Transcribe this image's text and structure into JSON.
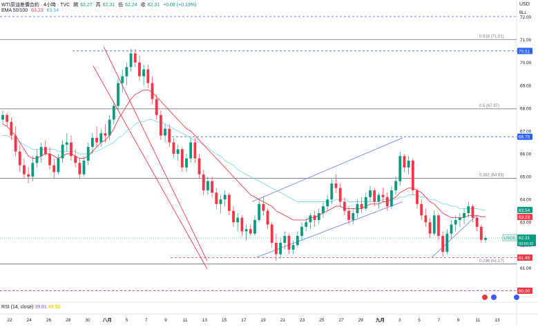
{
  "header": {
    "symbol_title": "WTI原油差價合約 · 4小時 · TVC",
    "open_label": "開",
    "open_value": "62.27",
    "high_label": "高",
    "high_value": "62.31",
    "low_label": "低",
    "low_value": "62.24",
    "close_label": "收",
    "close_value": "62.31",
    "change": "+0.08 (+0.13%)",
    "ema_label": "EMA 50/100",
    "ema_fast": "63.23",
    "ema_slow": "63.54",
    "currency": "USD",
    "currency_sub": "BLL"
  },
  "rsi": {
    "label": "RSI (14, close)",
    "value1": "39.81",
    "value2": "49.50"
  },
  "colors": {
    "up": "#089981",
    "down": "#f23645",
    "ema_fast": "#f23645",
    "ema_slow": "#7fd7ef",
    "channel_down": "#f23645",
    "channel_up": "#6c8ce8",
    "level_blue": "#2962ff",
    "level_red": "#f23645"
  },
  "fib_levels": [
    {
      "label": "0.618 (71.01)",
      "value": 71.01
    },
    {
      "label": "0.5 (67.97)",
      "value": 67.97
    },
    {
      "label": "0.382 (64.93)",
      "value": 64.93
    },
    {
      "label": "0.236 (61.17)",
      "value": 61.17
    }
  ],
  "price_badges": [
    {
      "label": "70.51",
      "value": 70.51,
      "color": "#2962ff"
    },
    {
      "label": "66.75",
      "value": 66.75,
      "color": "#2962ff"
    },
    {
      "label": "63.54",
      "value": 63.54,
      "color": "#089981"
    },
    {
      "label": "63.23",
      "value": 63.23,
      "color": "#f23645"
    },
    {
      "label": "61.45",
      "value": 61.45,
      "color": "#f23645"
    },
    {
      "label": "60.00",
      "value": 60.0,
      "color": "#f23645"
    }
  ],
  "usoil_badge": {
    "symbol": "USOIL",
    "price": "62.31",
    "countdown": "03:55:32",
    "value": 62.31
  },
  "chart_data": {
    "type": "candlestick",
    "y_axis_ticks": [
      "72.00",
      "71.00",
      "70.00",
      "69.00",
      "68.00",
      "67.00",
      "66.00",
      "65.00",
      "64.00",
      "63.00",
      "62.00",
      "61.00"
    ],
    "ylim": [
      59.5,
      72.5
    ],
    "x_axis_ticks": [
      "22",
      "24",
      "26",
      "28",
      "30",
      "八月",
      "5",
      "7",
      "9",
      "11",
      "13",
      "15",
      "17",
      "19",
      "21",
      "23",
      "25",
      "27",
      "29",
      "九月",
      "3",
      "5",
      "7",
      "9",
      "11",
      "13"
    ],
    "ohlc": [
      [
        67.5,
        67.9,
        67.3,
        67.7
      ],
      [
        67.7,
        67.8,
        67.2,
        67.4
      ],
      [
        67.4,
        67.6,
        66.6,
        66.8
      ],
      [
        66.8,
        67.2,
        65.9,
        66.1
      ],
      [
        66.1,
        66.4,
        65.2,
        65.5
      ],
      [
        65.5,
        65.8,
        64.9,
        65.1
      ],
      [
        65.1,
        65.4,
        64.7,
        65.0
      ],
      [
        65.0,
        65.9,
        64.8,
        65.6
      ],
      [
        65.6,
        66.2,
        65.4,
        65.9
      ],
      [
        65.9,
        66.5,
        65.6,
        66.3
      ],
      [
        66.3,
        66.6,
        65.9,
        66.0
      ],
      [
        66.0,
        66.3,
        65.3,
        65.5
      ],
      [
        65.5,
        65.8,
        64.9,
        65.2
      ],
      [
        65.2,
        66.0,
        65.1,
        65.8
      ],
      [
        65.8,
        66.6,
        65.6,
        66.4
      ],
      [
        66.4,
        66.9,
        66.1,
        66.5
      ],
      [
        66.5,
        66.8,
        65.7,
        65.9
      ],
      [
        65.9,
        66.2,
        65.4,
        65.6
      ],
      [
        65.6,
        65.8,
        64.9,
        65.1
      ],
      [
        65.1,
        65.9,
        65.0,
        65.7
      ],
      [
        65.7,
        66.5,
        65.5,
        66.3
      ],
      [
        66.3,
        66.9,
        66.0,
        66.7
      ],
      [
        66.7,
        67.2,
        66.3,
        66.5
      ],
      [
        66.5,
        67.1,
        66.3,
        66.9
      ],
      [
        66.9,
        67.3,
        66.5,
        66.8
      ],
      [
        66.8,
        67.7,
        66.6,
        67.5
      ],
      [
        67.5,
        68.3,
        67.3,
        68.1
      ],
      [
        68.1,
        69.3,
        67.9,
        69.1
      ],
      [
        69.1,
        69.7,
        68.7,
        69.4
      ],
      [
        69.4,
        70.0,
        69.0,
        69.8
      ],
      [
        69.8,
        70.6,
        69.6,
        70.4
      ],
      [
        70.4,
        70.6,
        69.8,
        70.0
      ],
      [
        70.0,
        70.3,
        69.2,
        69.4
      ],
      [
        69.4,
        69.9,
        69.0,
        69.7
      ],
      [
        69.7,
        69.9,
        68.9,
        69.1
      ],
      [
        69.1,
        69.4,
        68.2,
        68.4
      ],
      [
        68.4,
        68.6,
        67.5,
        67.7
      ],
      [
        67.7,
        67.9,
        66.6,
        66.8
      ],
      [
        66.8,
        67.3,
        66.5,
        67.1
      ],
      [
        67.1,
        67.3,
        66.3,
        66.5
      ],
      [
        66.5,
        66.7,
        65.8,
        66.0
      ],
      [
        66.0,
        66.4,
        65.7,
        66.2
      ],
      [
        66.2,
        66.3,
        65.2,
        65.4
      ],
      [
        65.4,
        66.0,
        65.2,
        65.8
      ],
      [
        65.8,
        66.7,
        65.6,
        66.5
      ],
      [
        66.5,
        66.7,
        65.6,
        65.8
      ],
      [
        65.8,
        66.0,
        64.9,
        65.1
      ],
      [
        65.1,
        65.3,
        64.2,
        64.4
      ],
      [
        64.4,
        65.0,
        64.2,
        64.8
      ],
      [
        64.8,
        65.0,
        64.1,
        64.3
      ],
      [
        64.3,
        64.5,
        63.6,
        63.8
      ],
      [
        63.8,
        64.2,
        63.4,
        64.0
      ],
      [
        64.0,
        64.4,
        63.7,
        64.2
      ],
      [
        64.2,
        64.3,
        63.3,
        63.5
      ],
      [
        63.5,
        63.7,
        62.8,
        63.0
      ],
      [
        63.0,
        63.4,
        62.6,
        63.2
      ],
      [
        63.2,
        63.3,
        62.4,
        62.6
      ],
      [
        62.6,
        62.9,
        62.2,
        62.7
      ],
      [
        62.7,
        62.9,
        62.4,
        62.5
      ],
      [
        62.5,
        63.3,
        62.4,
        63.1
      ],
      [
        63.1,
        64.0,
        63.0,
        63.8
      ],
      [
        63.8,
        64.1,
        63.3,
        63.5
      ],
      [
        63.5,
        63.6,
        62.7,
        62.9
      ],
      [
        62.9,
        63.0,
        61.9,
        62.1
      ],
      [
        62.1,
        62.5,
        61.3,
        61.6
      ],
      [
        61.6,
        62.3,
        61.4,
        62.1
      ],
      [
        62.1,
        62.6,
        61.8,
        62.4
      ],
      [
        62.4,
        62.5,
        61.6,
        61.8
      ],
      [
        61.8,
        62.2,
        61.6,
        62.0
      ],
      [
        62.0,
        62.6,
        61.9,
        62.4
      ],
      [
        62.4,
        63.0,
        62.2,
        62.8
      ],
      [
        62.8,
        63.2,
        62.6,
        63.0
      ],
      [
        63.0,
        63.4,
        62.7,
        63.3
      ],
      [
        63.3,
        63.5,
        62.8,
        63.1
      ],
      [
        63.1,
        63.6,
        62.9,
        63.4
      ],
      [
        63.4,
        63.9,
        63.2,
        63.7
      ],
      [
        63.7,
        64.2,
        63.5,
        64.0
      ],
      [
        64.0,
        64.9,
        63.8,
        64.7
      ],
      [
        64.7,
        65.1,
        64.3,
        64.5
      ],
      [
        64.5,
        64.7,
        63.7,
        63.9
      ],
      [
        63.9,
        64.1,
        63.3,
        63.5
      ],
      [
        63.5,
        63.7,
        62.9,
        63.1
      ],
      [
        63.1,
        63.6,
        62.9,
        63.4
      ],
      [
        63.4,
        64.0,
        63.2,
        63.8
      ],
      [
        63.8,
        64.1,
        63.4,
        63.6
      ],
      [
        63.6,
        64.3,
        63.5,
        64.1
      ],
      [
        64.1,
        64.6,
        63.9,
        64.4
      ],
      [
        64.4,
        64.5,
        63.7,
        63.9
      ],
      [
        63.9,
        64.3,
        63.6,
        64.2
      ],
      [
        64.2,
        64.5,
        63.9,
        64.1
      ],
      [
        64.1,
        64.3,
        63.5,
        63.7
      ],
      [
        63.7,
        64.6,
        63.6,
        64.4
      ],
      [
        64.4,
        65.0,
        64.2,
        64.8
      ],
      [
        64.8,
        66.1,
        64.6,
        65.9
      ],
      [
        65.9,
        66.0,
        65.2,
        65.4
      ],
      [
        65.4,
        65.9,
        65.1,
        65.7
      ],
      [
        65.7,
        65.8,
        64.2,
        64.4
      ],
      [
        64.4,
        64.5,
        63.6,
        63.8
      ],
      [
        63.8,
        64.0,
        63.1,
        63.3
      ],
      [
        63.3,
        63.6,
        62.8,
        63.0
      ],
      [
        63.0,
        63.2,
        62.3,
        62.5
      ],
      [
        62.5,
        63.5,
        62.4,
        63.3
      ],
      [
        63.3,
        63.4,
        62.2,
        62.4
      ],
      [
        62.4,
        62.6,
        61.5,
        61.7
      ],
      [
        61.7,
        62.7,
        61.6,
        62.5
      ],
      [
        62.5,
        63.1,
        62.3,
        62.9
      ],
      [
        62.9,
        63.3,
        62.6,
        63.1
      ],
      [
        63.1,
        63.4,
        62.8,
        63.2
      ],
      [
        63.2,
        63.6,
        62.9,
        63.4
      ],
      [
        63.4,
        63.9,
        63.2,
        63.7
      ],
      [
        63.7,
        63.8,
        63.0,
        63.2
      ],
      [
        63.2,
        63.3,
        62.6,
        62.8
      ],
      [
        62.8,
        62.9,
        62.1,
        62.23
      ],
      [
        62.23,
        62.4,
        62.1,
        62.31
      ]
    ],
    "ema_fast_values": [
      67.3,
      67.2,
      67.0,
      66.8,
      66.5,
      66.2,
      65.9,
      65.8,
      65.8,
      65.9,
      66.0,
      66.0,
      65.9,
      65.8,
      65.9,
      66.0,
      66.0,
      65.9,
      65.8,
      65.8,
      65.9,
      66.1,
      66.3,
      66.5,
      66.6,
      66.8,
      67.1,
      67.5,
      67.8,
      68.1,
      68.4,
      68.6,
      68.7,
      68.8,
      68.8,
      68.7,
      68.5,
      68.3,
      68.1,
      67.9,
      67.7,
      67.5,
      67.3,
      67.1,
      67.0,
      66.8,
      66.6,
      66.4,
      66.2,
      66.0,
      65.8,
      65.6,
      65.4,
      65.2,
      65.0,
      64.8,
      64.6,
      64.4,
      64.2,
      64.1,
      64.0,
      63.9,
      63.8,
      63.7,
      63.5,
      63.4,
      63.3,
      63.2,
      63.1,
      63.1,
      63.1,
      63.1,
      63.2,
      63.2,
      63.3,
      63.4,
      63.5,
      63.6,
      63.7,
      63.7,
      63.6,
      63.6,
      63.6,
      63.6,
      63.6,
      63.7,
      63.8,
      63.8,
      63.8,
      63.9,
      63.9,
      64.0,
      64.1,
      64.3,
      64.4,
      64.5,
      64.5,
      64.4,
      64.3,
      64.1,
      63.9,
      63.8,
      63.6,
      63.4,
      63.3,
      63.2,
      63.2,
      63.2,
      63.2,
      63.3,
      63.3,
      63.3,
      63.25,
      63.23
    ],
    "ema_slow_values": [
      66.8,
      66.8,
      66.7,
      66.6,
      66.5,
      66.4,
      66.3,
      66.2,
      66.2,
      66.2,
      66.2,
      66.2,
      66.2,
      66.1,
      66.1,
      66.1,
      66.1,
      66.1,
      66.0,
      66.0,
      66.0,
      66.1,
      66.1,
      66.2,
      66.3,
      66.4,
      66.5,
      66.7,
      66.8,
      67.0,
      67.1,
      67.3,
      67.4,
      67.4,
      67.5,
      67.5,
      67.4,
      67.4,
      67.3,
      67.2,
      67.1,
      67.0,
      66.9,
      66.8,
      66.7,
      66.6,
      66.5,
      66.4,
      66.3,
      66.1,
      66.0,
      65.9,
      65.7,
      65.6,
      65.5,
      65.3,
      65.2,
      65.1,
      65.0,
      64.9,
      64.8,
      64.7,
      64.6,
      64.5,
      64.4,
      64.3,
      64.2,
      64.1,
      64.0,
      63.9,
      63.9,
      63.9,
      63.9,
      63.9,
      63.9,
      63.9,
      63.9,
      63.9,
      64.0,
      64.0,
      64.0,
      63.9,
      63.9,
      63.9,
      63.9,
      63.9,
      63.9,
      63.9,
      63.9,
      64.0,
      64.0,
      64.0,
      64.0,
      64.1,
      64.1,
      64.2,
      64.2,
      64.2,
      64.1,
      64.1,
      64.0,
      64.0,
      63.9,
      63.8,
      63.8,
      63.7,
      63.7,
      63.6,
      63.6,
      63.6,
      63.6,
      63.6,
      63.55,
      63.54
    ]
  }
}
